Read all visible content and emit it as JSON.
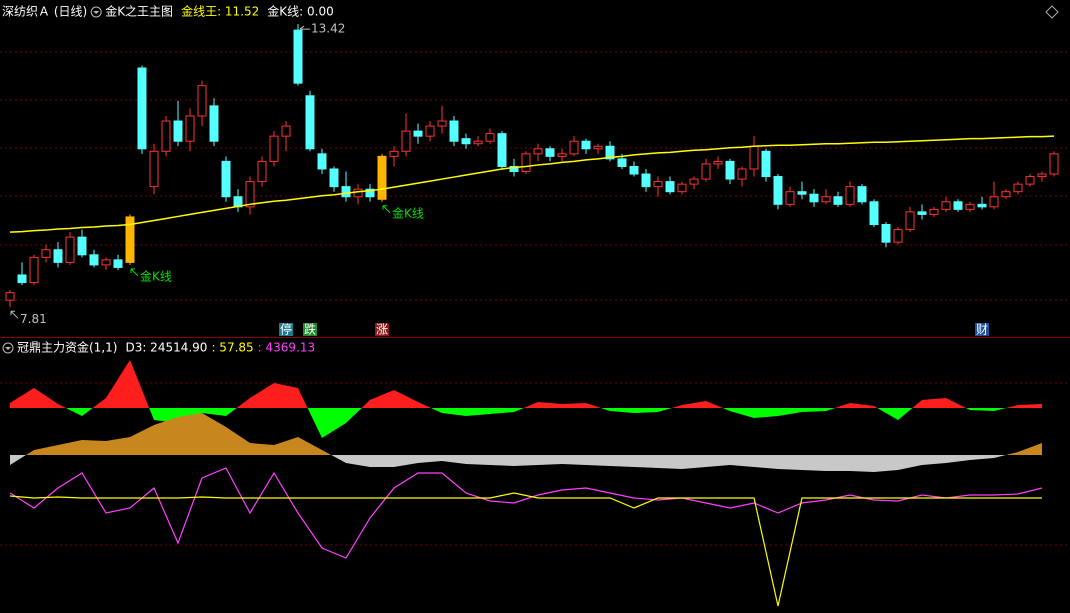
{
  "chart_data": [
    {
      "type": "candlestick",
      "title": "深纺织Ａ (日线)",
      "subtitle": "金K之王主图",
      "legend": [
        {
          "text": "金线王: 11.52",
          "color": "#ffff00"
        },
        {
          "text": "金K线: 0.00",
          "color": "#ffffff"
        }
      ],
      "ylim": [
        7.4,
        13.6
      ],
      "up_color": "#ff3232",
      "down_color": "#54ffff",
      "highlight_color": "#ffb400",
      "highlight": [
        10,
        31
      ],
      "candles": [
        [
          7.95,
          8.15,
          7.81,
          8.1
        ],
        [
          8.45,
          8.7,
          8.25,
          8.3
        ],
        [
          8.3,
          8.85,
          8.25,
          8.8
        ],
        [
          8.8,
          9.05,
          8.7,
          8.95
        ],
        [
          8.95,
          9.1,
          8.6,
          8.7
        ],
        [
          8.7,
          9.3,
          8.65,
          9.2
        ],
        [
          9.2,
          9.35,
          8.8,
          8.85
        ],
        [
          8.85,
          8.95,
          8.6,
          8.65
        ],
        [
          8.65,
          8.8,
          8.55,
          8.75
        ],
        [
          8.75,
          8.85,
          8.55,
          8.6
        ],
        [
          8.7,
          9.65,
          8.65,
          9.6
        ],
        [
          12.55,
          12.6,
          10.85,
          10.95
        ],
        [
          10.2,
          11.05,
          10.05,
          10.9
        ],
        [
          10.9,
          11.6,
          10.8,
          11.5
        ],
        [
          11.5,
          11.9,
          11.0,
          11.1
        ],
        [
          11.1,
          11.75,
          10.9,
          11.6
        ],
        [
          11.6,
          12.3,
          11.4,
          12.2
        ],
        [
          11.8,
          11.95,
          11.0,
          11.1
        ],
        [
          10.7,
          10.8,
          9.9,
          10.0
        ],
        [
          10.0,
          10.15,
          9.7,
          9.8
        ],
        [
          9.8,
          10.4,
          9.65,
          10.3
        ],
        [
          10.3,
          10.8,
          10.2,
          10.7
        ],
        [
          10.7,
          11.3,
          10.6,
          11.2
        ],
        [
          11.2,
          11.5,
          10.9,
          11.4
        ],
        [
          13.3,
          13.42,
          12.2,
          12.25
        ],
        [
          12.0,
          12.1,
          10.9,
          10.95
        ],
        [
          10.85,
          10.95,
          10.45,
          10.55
        ],
        [
          10.55,
          10.6,
          10.1,
          10.2
        ],
        [
          10.2,
          10.5,
          9.9,
          10.0
        ],
        [
          10.0,
          10.25,
          9.85,
          10.15
        ],
        [
          10.15,
          10.25,
          9.9,
          10.0
        ],
        [
          9.95,
          10.85,
          9.9,
          10.8
        ],
        [
          10.8,
          11.0,
          10.6,
          10.9
        ],
        [
          10.9,
          11.65,
          10.8,
          11.3
        ],
        [
          11.3,
          11.45,
          11.05,
          11.2
        ],
        [
          11.2,
          11.5,
          11.1,
          11.4
        ],
        [
          11.4,
          11.8,
          11.25,
          11.5
        ],
        [
          11.5,
          11.6,
          11.0,
          11.1
        ],
        [
          11.15,
          11.25,
          10.95,
          11.05
        ],
        [
          11.05,
          11.2,
          11.0,
          11.1
        ],
        [
          11.1,
          11.35,
          11.05,
          11.25
        ],
        [
          11.25,
          11.3,
          10.55,
          10.6
        ],
        [
          10.6,
          10.75,
          10.4,
          10.5
        ],
        [
          10.5,
          10.9,
          10.45,
          10.85
        ],
        [
          10.85,
          11.05,
          10.7,
          10.95
        ],
        [
          10.95,
          11.0,
          10.7,
          10.8
        ],
        [
          10.8,
          10.95,
          10.7,
          10.85
        ],
        [
          10.85,
          11.2,
          10.8,
          11.1
        ],
        [
          11.1,
          11.15,
          10.85,
          10.95
        ],
        [
          10.95,
          11.05,
          10.85,
          11.0
        ],
        [
          11.0,
          11.1,
          10.7,
          10.75
        ],
        [
          10.75,
          10.85,
          10.55,
          10.6
        ],
        [
          10.6,
          10.7,
          10.4,
          10.45
        ],
        [
          10.45,
          10.55,
          10.1,
          10.2
        ],
        [
          10.2,
          10.4,
          10.0,
          10.3
        ],
        [
          10.3,
          10.4,
          10.05,
          10.1
        ],
        [
          10.1,
          10.3,
          10.05,
          10.25
        ],
        [
          10.25,
          10.4,
          10.15,
          10.35
        ],
        [
          10.35,
          10.75,
          10.3,
          10.65
        ],
        [
          10.65,
          10.8,
          10.55,
          10.7
        ],
        [
          10.7,
          10.75,
          10.25,
          10.35
        ],
        [
          10.35,
          10.6,
          10.2,
          10.55
        ],
        [
          10.55,
          11.2,
          10.4,
          11.0
        ],
        [
          10.9,
          10.95,
          10.3,
          10.4
        ],
        [
          10.4,
          10.45,
          9.75,
          9.85
        ],
        [
          9.85,
          10.2,
          9.8,
          10.1
        ],
        [
          10.1,
          10.3,
          9.95,
          10.05
        ],
        [
          10.05,
          10.15,
          9.8,
          9.9
        ],
        [
          9.9,
          10.15,
          9.85,
          10.0
        ],
        [
          10.0,
          10.1,
          9.8,
          9.85
        ],
        [
          9.85,
          10.3,
          9.8,
          10.2
        ],
        [
          10.2,
          10.25,
          9.85,
          9.9
        ],
        [
          9.9,
          9.95,
          9.4,
          9.45
        ],
        [
          9.45,
          9.5,
          9.0,
          9.1
        ],
        [
          9.1,
          9.4,
          9.05,
          9.35
        ],
        [
          9.35,
          9.8,
          9.3,
          9.7
        ],
        [
          9.7,
          9.85,
          9.55,
          9.65
        ],
        [
          9.65,
          9.8,
          9.6,
          9.75
        ],
        [
          9.75,
          10.0,
          9.7,
          9.9
        ],
        [
          9.9,
          9.95,
          9.7,
          9.75
        ],
        [
          9.75,
          9.9,
          9.7,
          9.85
        ],
        [
          9.85,
          10.0,
          9.75,
          9.8
        ],
        [
          9.8,
          10.3,
          9.75,
          10.0
        ],
        [
          10.0,
          10.15,
          9.95,
          10.1
        ],
        [
          10.1,
          10.3,
          10.05,
          10.25
        ],
        [
          10.25,
          10.45,
          10.2,
          10.4
        ],
        [
          10.4,
          10.5,
          10.3,
          10.45
        ],
        [
          10.45,
          10.9,
          10.4,
          10.85
        ]
      ],
      "ma": {
        "color": "#ffff00",
        "values": [
          9.3,
          9.31,
          9.33,
          9.34,
          9.36,
          9.37,
          9.39,
          9.4,
          9.42,
          9.43,
          9.45,
          9.49,
          9.53,
          9.57,
          9.61,
          9.65,
          9.69,
          9.73,
          9.77,
          9.81,
          9.85,
          9.88,
          9.91,
          9.93,
          9.96,
          9.99,
          10.02,
          10.04,
          10.07,
          10.1,
          10.12,
          10.15,
          10.19,
          10.23,
          10.27,
          10.31,
          10.35,
          10.39,
          10.43,
          10.47,
          10.51,
          10.55,
          10.58,
          10.6,
          10.63,
          10.65,
          10.68,
          10.7,
          10.73,
          10.75,
          10.78,
          10.8,
          10.83,
          10.85,
          10.87,
          10.88,
          10.9,
          10.92,
          10.93,
          10.95,
          10.97,
          10.98,
          11.0,
          11.01,
          11.02,
          11.02,
          11.03,
          11.04,
          11.05,
          11.05,
          11.06,
          11.07,
          11.08,
          11.08,
          11.09,
          11.1,
          11.11,
          11.12,
          11.13,
          11.14,
          11.15,
          11.15,
          11.16,
          11.17,
          11.18,
          11.19,
          11.19,
          11.2
        ]
      },
      "high_labels": [
        null,
        null,
        null,
        null,
        null,
        null,
        null,
        null,
        null,
        null,
        null,
        null,
        null,
        null,
        null,
        null,
        null,
        null,
        null,
        null,
        null,
        null,
        null,
        null,
        {
          "text": "13.42",
          "color": "#c0c0c0"
        },
        null,
        null,
        null,
        null,
        null,
        null,
        null,
        null,
        null,
        null,
        null,
        null,
        null,
        null,
        null,
        null,
        null,
        null,
        null,
        null,
        null,
        null,
        null,
        null,
        null,
        null,
        null,
        null,
        null,
        null,
        null,
        null,
        null,
        null,
        null,
        null,
        null,
        null,
        null,
        null,
        null,
        null,
        null,
        null,
        null,
        null,
        null,
        null,
        null,
        null,
        null,
        null,
        null,
        null,
        null,
        null,
        null,
        null,
        null,
        null,
        null,
        null,
        null
      ],
      "low_labels": [
        {
          "text": "7.81",
          "color": "#c0c0c0"
        },
        null,
        null,
        null,
        null,
        null,
        null,
        null,
        null,
        null,
        {
          "text": "金K线",
          "color": "#00e000"
        },
        null,
        null,
        null,
        null,
        null,
        null,
        null,
        null,
        null,
        null,
        null,
        null,
        null,
        null,
        null,
        null,
        null,
        null,
        null,
        null,
        {
          "text": "金K线",
          "color": "#00e000"
        },
        null,
        null,
        null,
        null,
        null,
        null,
        null,
        null,
        null,
        null,
        null,
        null,
        null,
        null,
        null,
        null,
        null,
        null,
        null,
        null,
        null,
        null,
        null,
        null,
        null,
        null,
        null,
        null,
        null,
        null,
        null,
        null,
        null,
        null,
        null,
        null,
        null,
        null,
        null,
        null,
        null,
        null,
        null,
        null,
        null,
        null,
        null,
        null,
        null,
        null,
        null,
        null
      ],
      "tags": [
        null,
        null,
        null,
        null,
        null,
        null,
        null,
        null,
        null,
        null,
        null,
        null,
        null,
        null,
        null,
        null,
        null,
        null,
        null,
        null,
        null,
        null,
        null,
        {
          "text": "停",
          "color": "#1b7a8c"
        },
        null,
        {
          "text": "跌",
          "color": "#1f8a2e"
        },
        null,
        null,
        null,
        null,
        null,
        {
          "text": "涨",
          "color": "#8c1b1b"
        },
        null,
        null,
        null,
        null,
        null,
        null,
        null,
        null,
        null,
        null,
        null,
        null,
        null,
        null,
        null,
        null,
        null,
        null,
        null,
        null,
        null,
        null,
        null,
        null,
        null,
        null,
        null,
        null,
        null,
        null,
        null,
        null,
        null,
        null,
        null,
        null,
        null,
        null,
        null,
        null,
        null,
        null,
        null,
        null,
        null,
        null,
        null,
        null,
        null,
        {
          "text": "财",
          "color": "#1b4f9c"
        },
        null,
        null,
        null,
        null,
        null,
        null,
        null,
        null,
        null,
        null,
        null
      ]
    },
    {
      "type": "indicator",
      "title": "冠鼎主力资金(1,1)",
      "legend": [
        {
          "text": "D3: 24514.90",
          "color": "#ffffff"
        },
        {
          "text": ": 57.85",
          "color": "#ffff00"
        },
        {
          "text": ": 4369.13",
          "color": "#ff40ff"
        }
      ],
      "series": [
        {
          "type": "area",
          "colors": [
            "#ff1e1e",
            "#00ff00"
          ],
          "ylim": [
            -202,
            63
          ],
          "values": [
            5,
            20,
            4,
            -8,
            10,
            48,
            -12,
            -15,
            -5,
            -8,
            10,
            25,
            20,
            -30,
            -15,
            8,
            18,
            6,
            -5,
            -8,
            -6,
            -4,
            6,
            4,
            5,
            -3,
            -5,
            -4,
            3,
            7,
            -3,
            -10,
            -8,
            -4,
            -3,
            5,
            2,
            -12,
            8,
            10,
            -2,
            -3,
            3,
            4
          ]
        },
        {
          "type": "area",
          "colors": [
            "#c8861e",
            "#c8c8c8"
          ],
          "ylim": [
            -155,
            110
          ],
          "values": [
            -10,
            5,
            10,
            15,
            14,
            18,
            30,
            38,
            42,
            28,
            12,
            10,
            18,
            5,
            -8,
            -12,
            -12,
            -8,
            -6,
            -9,
            -10,
            -11,
            -10,
            -9,
            -10,
            -11,
            -12,
            -13,
            -14,
            -12,
            -10,
            -12,
            -14,
            -15,
            -16,
            -16,
            -17,
            -15,
            -10,
            -8,
            -5,
            -3,
            3,
            12
          ]
        },
        {
          "type": "line",
          "color": "#ff40ff",
          "ylim": [
            -112,
            153
          ],
          "values": [
            5,
            -10,
            10,
            25,
            -15,
            -10,
            10,
            -45,
            20,
            30,
            -15,
            25,
            -15,
            -50,
            -60,
            -20,
            10,
            25,
            25,
            5,
            -3,
            -5,
            3,
            8,
            10,
            5,
            0,
            -2,
            0,
            -5,
            -10,
            -5,
            -15,
            -5,
            -2,
            3,
            -2,
            -3,
            3,
            0,
            3,
            3,
            4,
            10
          ]
        },
        {
          "type": "line",
          "color": "#ffff00",
          "ylim": [
            -112,
            153
          ],
          "values": [
            2,
            0,
            1,
            0,
            0,
            0,
            0,
            0,
            1,
            0,
            0,
            0,
            0,
            0,
            0,
            0,
            0,
            0,
            0,
            0,
            0,
            5,
            0,
            0,
            0,
            0,
            -10,
            0,
            0,
            0,
            0,
            0,
            -108,
            0,
            0,
            0,
            0,
            0,
            0,
            0,
            0,
            0,
            0,
            0
          ]
        }
      ]
    }
  ]
}
